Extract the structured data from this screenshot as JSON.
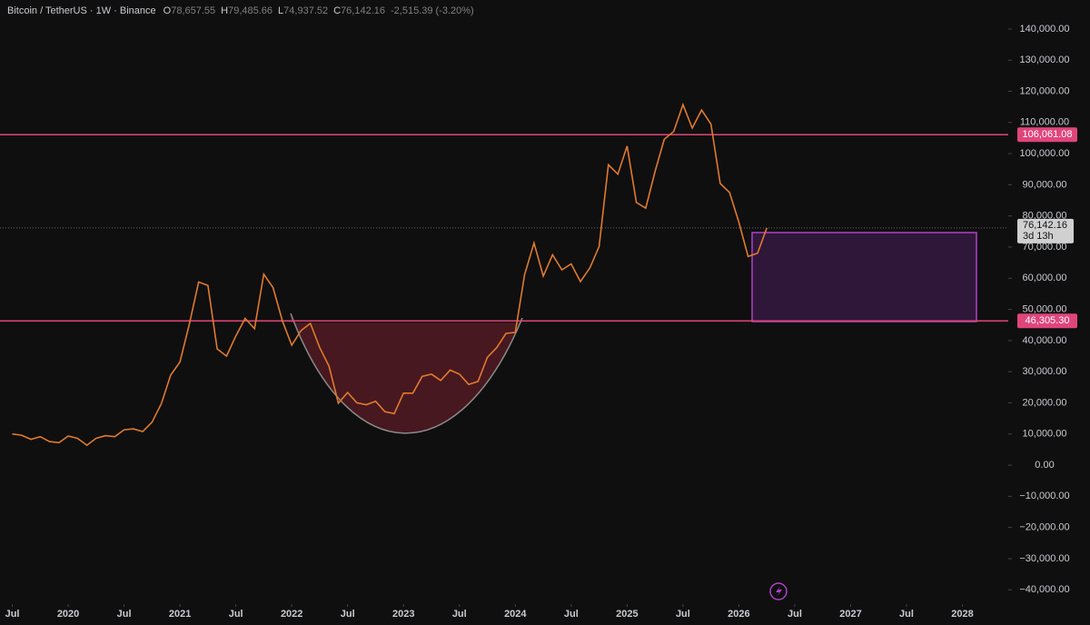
{
  "chart_data": {
    "type": "line",
    "title": "Bitcoin / TetherUS · 1W · Binance",
    "ohlc": [
      {
        "label": "O",
        "value": "78,657.55"
      },
      {
        "label": "H",
        "value": "79,485.66"
      },
      {
        "label": "L",
        "value": "74,937.52"
      },
      {
        "label": "C",
        "value": "76,142.16"
      }
    ],
    "change": "-2,515.39 (-3.20%)",
    "x": [
      2019.5,
      2019.583,
      2019.667,
      2019.75,
      2019.833,
      2019.917,
      2020,
      2020.083,
      2020.167,
      2020.25,
      2020.333,
      2020.417,
      2020.5,
      2020.583,
      2020.667,
      2020.75,
      2020.833,
      2020.917,
      2021,
      2021.083,
      2021.167,
      2021.25,
      2021.333,
      2021.417,
      2021.5,
      2021.583,
      2021.667,
      2021.75,
      2021.833,
      2021.917,
      2022,
      2022.083,
      2022.167,
      2022.25,
      2022.333,
      2022.417,
      2022.5,
      2022.583,
      2022.667,
      2022.75,
      2022.833,
      2022.917,
      2023,
      2023.083,
      2023.167,
      2023.25,
      2023.333,
      2023.417,
      2023.5,
      2023.583,
      2023.667,
      2023.75,
      2023.833,
      2023.917,
      2024,
      2024.083,
      2024.167,
      2024.25,
      2024.333,
      2024.417,
      2024.5,
      2024.583,
      2024.667,
      2024.75,
      2024.833,
      2024.917,
      2025,
      2025.083,
      2025.167,
      2025.25,
      2025.333,
      2025.417,
      2025.5,
      2025.583,
      2025.667,
      2025.75,
      2025.833,
      2025.917,
      2026,
      2026.083,
      2026.167,
      2026.25
    ],
    "series": [
      {
        "name": "BTCUSDT",
        "color": "#e07a2e",
        "values": [
          10000,
          9600,
          8300,
          9150,
          7550,
          7200,
          9350,
          8600,
          6400,
          8600,
          9450,
          9140,
          11350,
          11650,
          10780,
          13800,
          19700,
          28900,
          33100,
          45100,
          58800,
          57700,
          37300,
          35000,
          41500,
          47100,
          43800,
          61300,
          57000,
          46200,
          38500,
          43200,
          45500,
          37700,
          31800,
          19900,
          23300,
          20000,
          19400,
          20500,
          17200,
          16550,
          23100,
          23100,
          28500,
          29200,
          27200,
          30500,
          29200,
          25900,
          26900,
          34600,
          37700,
          42300,
          42600,
          61100,
          71300,
          60700,
          67500,
          62700,
          64600,
          58900,
          63300,
          70200,
          96400,
          93400,
          102400,
          84300,
          82500,
          94200,
          104600,
          107100,
          115700,
          108200,
          114000,
          109500,
          90400,
          87500,
          78000,
          67000,
          68000,
          76142.16
        ]
      }
    ],
    "levels": [
      {
        "value": 106061.08,
        "label": "106,061.08"
      },
      {
        "value": 46305.3,
        "label": "46,305.30"
      }
    ],
    "level_color": "#e0457b",
    "last_price": {
      "value": 76142.16,
      "label": "76,142.16",
      "countdown": "3d 13h"
    },
    "xlim": [
      2019.39,
      2028.41
    ],
    "ylim": [
      -44600,
      149300
    ],
    "xticks": [
      {
        "value": 2019.5,
        "label": "Jul"
      },
      {
        "value": 2020,
        "label": "2020"
      },
      {
        "value": 2020.5,
        "label": "Jul"
      },
      {
        "value": 2021,
        "label": "2021"
      },
      {
        "value": 2021.5,
        "label": "Jul"
      },
      {
        "value": 2022,
        "label": "2022"
      },
      {
        "value": 2022.5,
        "label": "Jul"
      },
      {
        "value": 2023,
        "label": "2023"
      },
      {
        "value": 2023.5,
        "label": "Jul"
      },
      {
        "value": 2024,
        "label": "2024"
      },
      {
        "value": 2024.5,
        "label": "Jul"
      },
      {
        "value": 2025,
        "label": "2025"
      },
      {
        "value": 2025.5,
        "label": "Jul"
      },
      {
        "value": 2026,
        "label": "2026"
      },
      {
        "value": 2026.5,
        "label": "Jul"
      },
      {
        "value": 2027,
        "label": "2027"
      },
      {
        "value": 2027.5,
        "label": "Jul"
      },
      {
        "value": 2028,
        "label": "2028"
      }
    ],
    "yticks": [
      {
        "value": 140000,
        "label": "140,000.00"
      },
      {
        "value": 130000,
        "label": "130,000.00"
      },
      {
        "value": 120000,
        "label": "120,000.00"
      },
      {
        "value": 110000,
        "label": "110,000.00"
      },
      {
        "value": 100000,
        "label": "100,000.00"
      },
      {
        "value": 90000,
        "label": "90,000.00"
      },
      {
        "value": 80000,
        "label": "80,000.00"
      },
      {
        "value": 70000,
        "label": "70,000.00"
      },
      {
        "value": 60000,
        "label": "60,000.00"
      },
      {
        "value": 50000,
        "label": "50,000.00"
      },
      {
        "value": 40000,
        "label": "40,000.00"
      },
      {
        "value": 30000,
        "label": "30,000.00"
      },
      {
        "value": 20000,
        "label": "20,000.00"
      },
      {
        "value": 10000,
        "label": "10,000.00"
      },
      {
        "value": 0,
        "label": "0.00"
      },
      {
        "value": -10000,
        "label": "−10,000.00"
      },
      {
        "value": -20000,
        "label": "−20,000.00"
      },
      {
        "value": -30000,
        "label": "−30,000.00"
      },
      {
        "value": -40000,
        "label": "−40,000.00"
      }
    ]
  }
}
